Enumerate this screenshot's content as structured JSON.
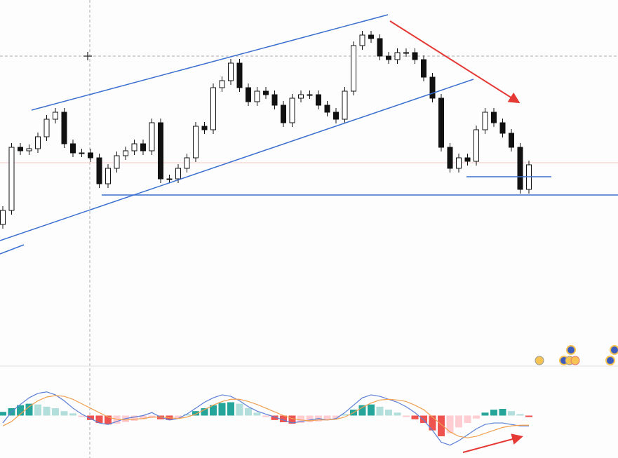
{
  "chart_data": [
    {
      "type": "candlestick",
      "up_color": "#ffffff",
      "down_color": "#111111",
      "edge_color": "#111111",
      "ylim": [
        0,
        400
      ],
      "open": [
        80,
        100,
        190,
        185,
        188,
        205,
        230,
        240,
        195,
        182,
        182,
        175,
        138,
        160,
        178,
        185,
        195,
        185,
        225,
        145,
        145,
        160,
        175,
        220,
        215,
        275,
        285,
        310,
        275,
        255,
        270,
        265,
        250,
        225,
        260,
        265,
        265,
        250,
        240,
        230,
        270,
        335,
        350,
        345,
        320,
        315,
        325,
        325,
        315,
        290,
        260,
        190,
        160,
        175,
        170,
        215,
        240,
        225,
        210,
        190,
        130
      ],
      "high": [
        106,
        196,
        196,
        194,
        211,
        236,
        246,
        246,
        201,
        188,
        188,
        181,
        166,
        184,
        191,
        201,
        201,
        231,
        231,
        151,
        166,
        181,
        226,
        226,
        281,
        291,
        316,
        316,
        281,
        276,
        276,
        271,
        256,
        266,
        271,
        271,
        271,
        256,
        246,
        276,
        341,
        356,
        356,
        351,
        326,
        331,
        331,
        331,
        321,
        296,
        266,
        196,
        181,
        181,
        221,
        246,
        246,
        231,
        216,
        196,
        171
      ],
      "low": [
        74,
        94,
        179,
        179,
        182,
        199,
        224,
        189,
        176,
        176,
        169,
        132,
        132,
        154,
        172,
        179,
        179,
        179,
        139,
        139,
        139,
        154,
        169,
        209,
        209,
        269,
        279,
        269,
        249,
        249,
        259,
        244,
        219,
        219,
        254,
        259,
        244,
        234,
        224,
        224,
        264,
        329,
        339,
        314,
        309,
        309,
        319,
        309,
        284,
        254,
        184,
        154,
        154,
        164,
        164,
        209,
        219,
        204,
        184,
        124,
        124
      ],
      "close": [
        100,
        190,
        185,
        188,
        205,
        230,
        240,
        195,
        182,
        182,
        175,
        138,
        160,
        178,
        185,
        195,
        185,
        225,
        145,
        145,
        160,
        175,
        220,
        215,
        275,
        285,
        310,
        275,
        255,
        270,
        265,
        250,
        225,
        260,
        265,
        265,
        250,
        240,
        230,
        270,
        335,
        350,
        345,
        320,
        315,
        325,
        325,
        315,
        290,
        260,
        190,
        160,
        175,
        170,
        215,
        240,
        225,
        210,
        190,
        130,
        165
      ]
    },
    {
      "type": "macd",
      "ylim": [
        -45,
        45
      ],
      "pos_colors": [
        "#26a69a",
        "#b2dfdb"
      ],
      "neg_colors": [
        "#ef5350",
        "#ffcdd2"
      ],
      "histogram": [
        5,
        10,
        14,
        16,
        15,
        12,
        10,
        6,
        3,
        -2,
        -6,
        -10,
        -12,
        -11,
        -9,
        -7,
        -5,
        -3,
        -5,
        -6,
        -4,
        2,
        6,
        10,
        14,
        17,
        18,
        16,
        10,
        4,
        -2,
        -6,
        -9,
        -11,
        -10,
        -9,
        -8,
        -6,
        -4,
        2,
        8,
        14,
        15,
        12,
        8,
        4,
        -2,
        -5,
        -10,
        -20,
        -28,
        -24,
        -16,
        -10,
        -4,
        4,
        8,
        9,
        6,
        2,
        -2
      ],
      "lines": [
        {
          "color": "#5b7fd6",
          "values": [
            -10,
            5,
            15,
            24,
            30,
            32,
            28,
            20,
            10,
            2,
            -4,
            -10,
            -12,
            -8,
            -4,
            -2,
            0,
            4,
            -2,
            -6,
            -4,
            2,
            10,
            18,
            24,
            28,
            26,
            20,
            12,
            6,
            2,
            -2,
            -6,
            -10,
            -8,
            -6,
            -4,
            -6,
            -4,
            4,
            14,
            24,
            28,
            26,
            22,
            18,
            12,
            4,
            -6,
            -20,
            -36,
            -40,
            -34,
            -26,
            -18,
            -12,
            -10,
            -10,
            -12,
            -14,
            -14
          ]
        },
        {
          "color": "#f0a050",
          "values": [
            -14,
            -8,
            2,
            12,
            20,
            25,
            27,
            26,
            22,
            16,
            10,
            4,
            -2,
            -5,
            -6,
            -5,
            -4,
            -2,
            -2,
            -3,
            -4,
            -2,
            2,
            8,
            14,
            19,
            22,
            22,
            19,
            15,
            10,
            5,
            0,
            -4,
            -6,
            -7,
            -6,
            -6,
            -5,
            -2,
            4,
            11,
            17,
            21,
            22,
            21,
            19,
            14,
            8,
            -2,
            -12,
            -22,
            -28,
            -30,
            -28,
            -24,
            -20,
            -16,
            -14,
            -13,
            -13
          ]
        }
      ]
    }
  ]
}
